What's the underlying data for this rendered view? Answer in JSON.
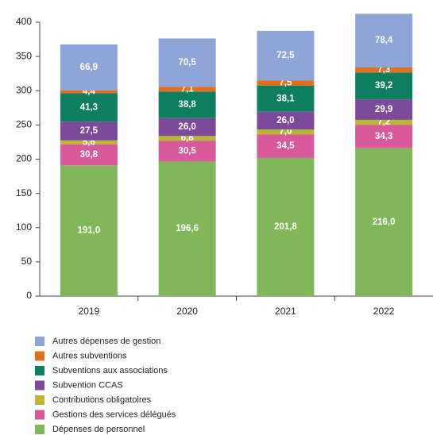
{
  "chart_data": {
    "type": "bar",
    "stacked": true,
    "categories": [
      "2019",
      "2020",
      "2021",
      "2022"
    ],
    "ylim": [
      0,
      400
    ],
    "yticks": [
      0,
      50,
      100,
      150,
      200,
      250,
      300,
      350,
      400
    ],
    "series": [
      {
        "name": "Dépenses de personnel",
        "color": "#80b75a",
        "values": [
          191.0,
          196.6,
          201.8,
          216.0
        ],
        "value_labels": [
          "191,0",
          "196,6",
          "201,8",
          "216,0"
        ]
      },
      {
        "name": "Gestions des services délégués",
        "color": "#d95a9b",
        "values": [
          30.8,
          30.5,
          34.5,
          34.3
        ],
        "value_labels": [
          "30,8",
          "30,5",
          "34,5",
          "34,3"
        ]
      },
      {
        "name": "Contributions obligatoires",
        "color": "#b8b633",
        "values": [
          5.6,
          6.8,
          7.0,
          7.2
        ],
        "value_labels": [
          "5,6",
          "6,8",
          "7,0",
          "7,2"
        ]
      },
      {
        "name": "Subvention CCAS",
        "color": "#7c4a99",
        "values": [
          27.5,
          26.0,
          26.0,
          29.9
        ],
        "value_labels": [
          "27,5",
          "26,0",
          "26,0",
          "29,9"
        ]
      },
      {
        "name": "Subventions aux associations",
        "color": "#0d7f5f",
        "values": [
          41.3,
          38.8,
          38.1,
          39.2
        ],
        "value_labels": [
          "41,3",
          "38,8",
          "38,1",
          "39,2"
        ]
      },
      {
        "name": "Autres subventions",
        "color": "#e0701f",
        "values": [
          4.4,
          7.1,
          7.5,
          7.3
        ],
        "value_labels": [
          "4,4",
          "7,1",
          "7,5",
          "7,3"
        ]
      },
      {
        "name": "Autres dépenses de gestion",
        "color": "#8fa4d7",
        "values": [
          66.9,
          70.5,
          72.5,
          78.4
        ],
        "value_labels": [
          "66,9",
          "70,5",
          "72,5",
          "78,4"
        ]
      }
    ]
  }
}
